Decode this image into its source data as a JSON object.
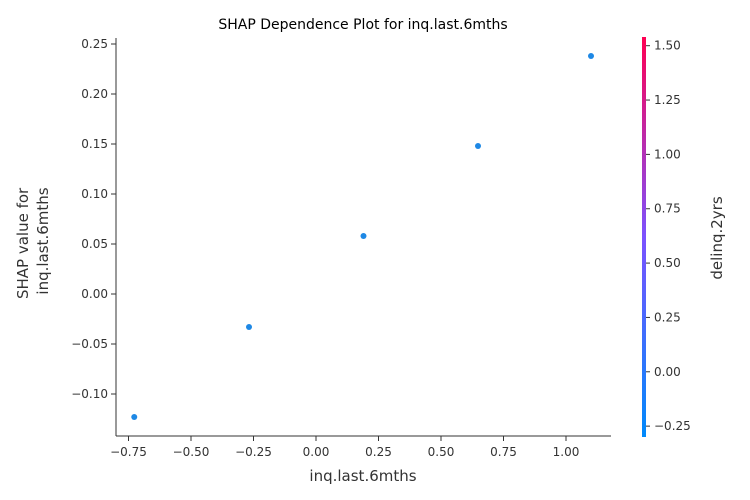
{
  "chart_data": {
    "type": "scatter",
    "title": "SHAP Dependence Plot for inq.last.6mths",
    "xlabel": "inq.last.6mths",
    "ylabel_lines": [
      "SHAP value for",
      "inq.last.6mths"
    ],
    "xlim": [
      -0.8,
      1.18
    ],
    "ylim": [
      -0.142,
      0.256
    ],
    "xticks": [
      -0.75,
      -0.5,
      -0.25,
      0.0,
      0.25,
      0.5,
      0.75,
      1.0
    ],
    "xtick_labels": [
      "−0.75",
      "−0.50",
      "−0.25",
      "0.00",
      "0.25",
      "0.50",
      "0.75",
      "1.00"
    ],
    "yticks": [
      -0.1,
      -0.05,
      0.0,
      0.05,
      0.1,
      0.15,
      0.2,
      0.25
    ],
    "ytick_labels": [
      "−0.10",
      "−0.05",
      "0.00",
      "0.05",
      "0.10",
      "0.15",
      "0.20",
      "0.25"
    ],
    "points": [
      {
        "x": -0.727,
        "y": -0.123,
        "color_value": 0
      },
      {
        "x": -0.268,
        "y": -0.033,
        "color_value": 0
      },
      {
        "x": 0.19,
        "y": 0.058,
        "color_value": 0
      },
      {
        "x": 0.648,
        "y": 0.148,
        "color_value": 0
      },
      {
        "x": 1.1,
        "y": 0.238,
        "color_value": 0
      }
    ],
    "colorbar": {
      "label": "delinq.2yrs",
      "range": [
        -0.3,
        1.54
      ],
      "ticks": [
        -0.25,
        0.0,
        0.25,
        0.5,
        0.75,
        1.0,
        1.25,
        1.5
      ],
      "tick_labels": [
        "−0.25",
        "0.00",
        "0.25",
        "0.50",
        "0.75",
        "1.00",
        "1.25",
        "1.50"
      ],
      "color_low": "#008afb",
      "color_high": "#ff0052"
    },
    "grid": false,
    "marker_color": "#1e88e5"
  }
}
